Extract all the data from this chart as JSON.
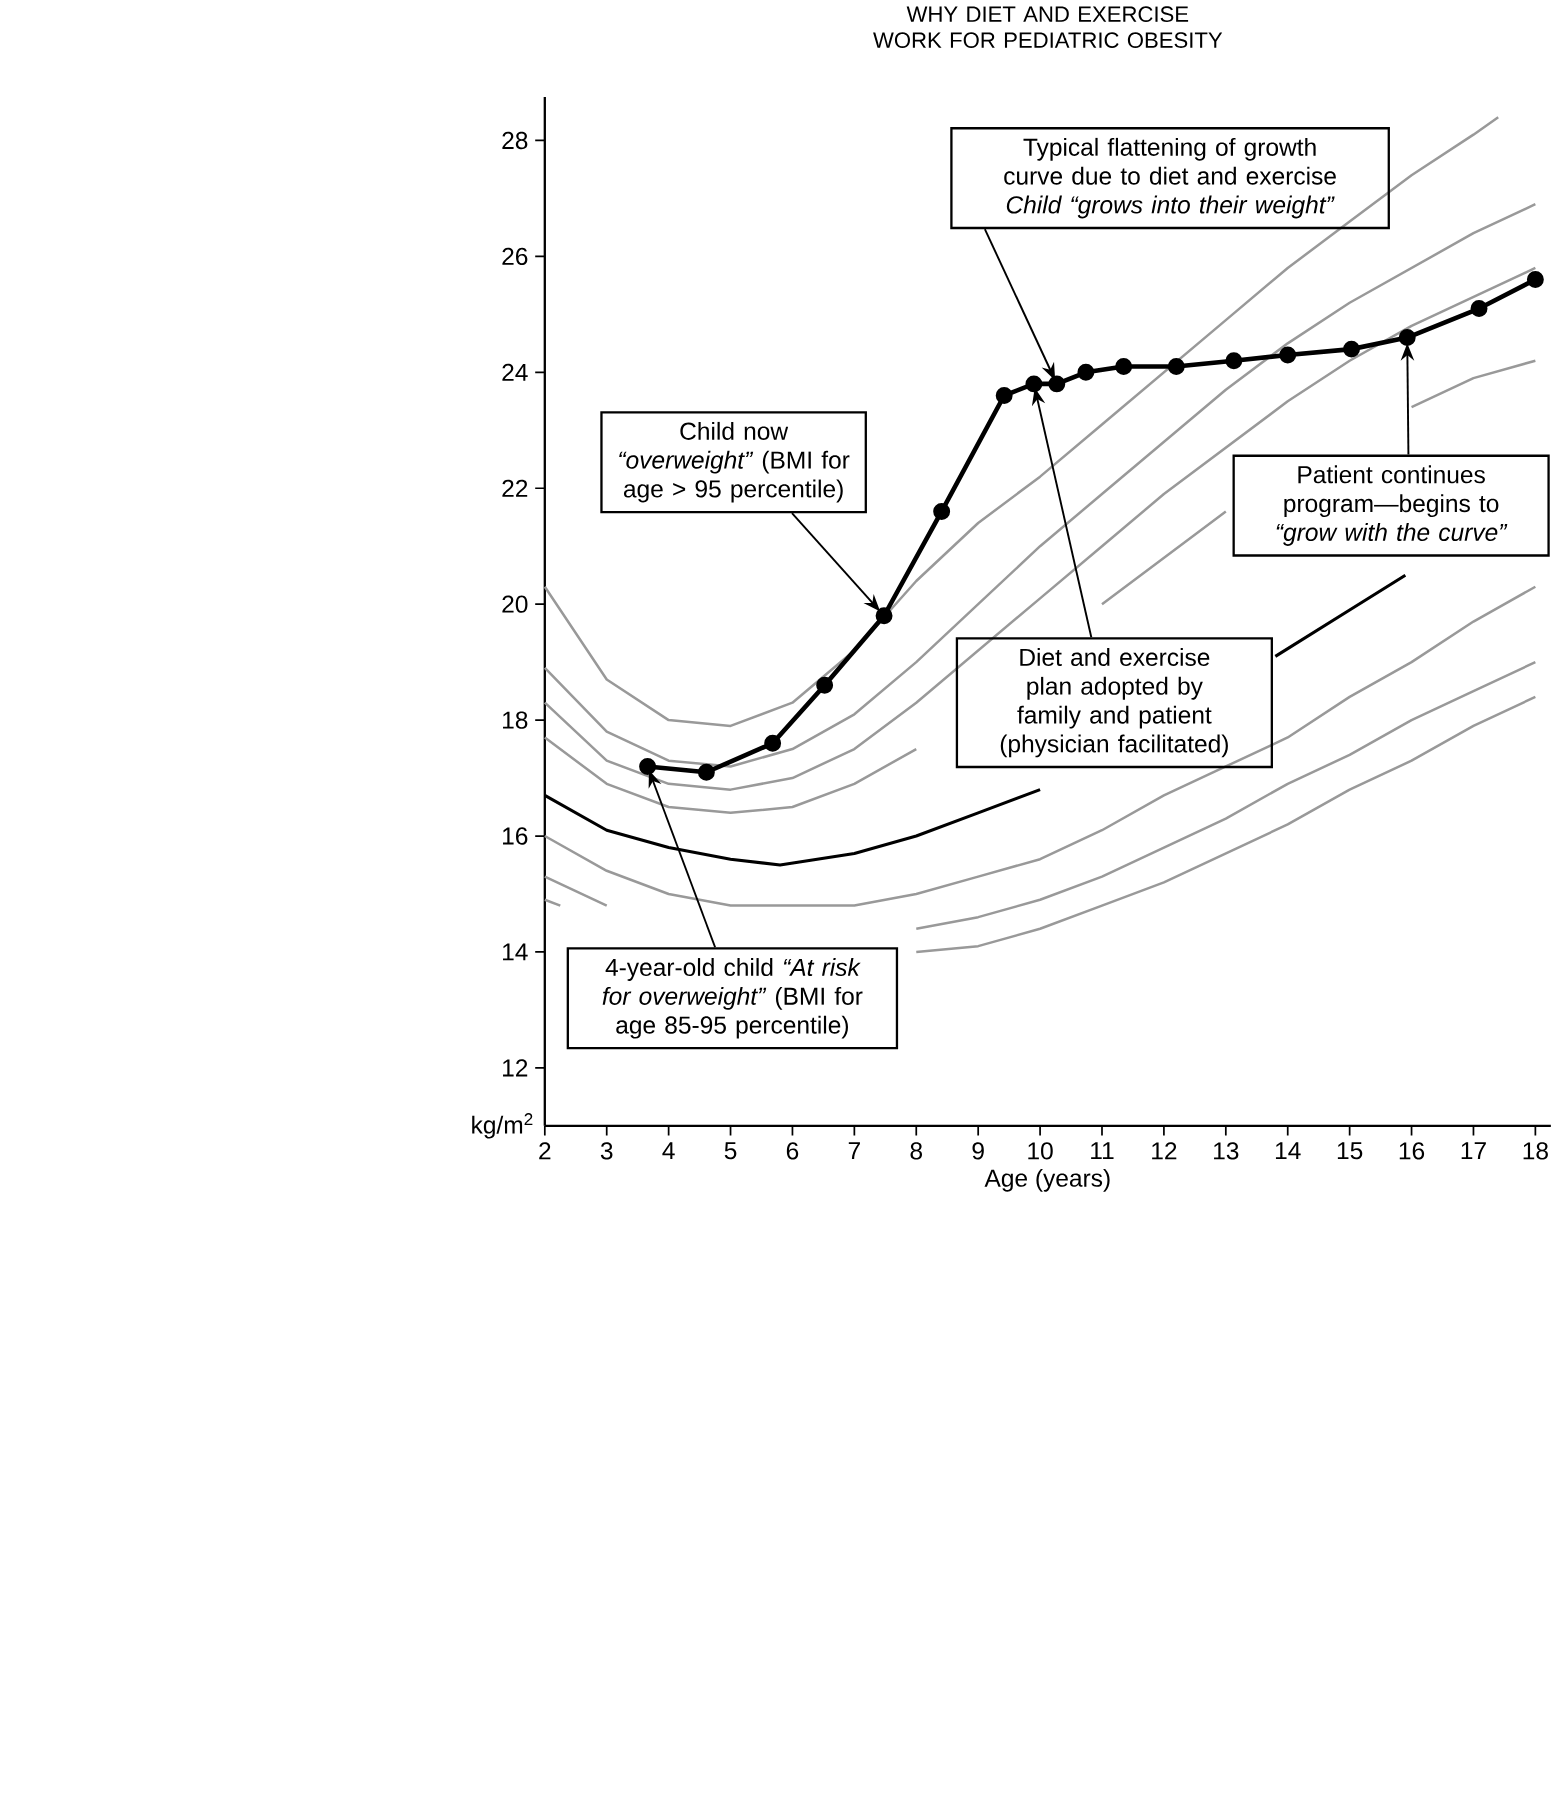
{
  "chart_data": {
    "type": "line",
    "title": "WHY DIET AND EXERCISE WORK FOR PEDIATRIC OBESITY",
    "xlabel": "Age (years)",
    "ylabel": "kg/m$^{2}$",
    "xlim": [
      2,
      18.25
    ],
    "ylim": [
      11,
      28.75
    ],
    "xticks": [
      2,
      3,
      4,
      5,
      6,
      7,
      8,
      9,
      10,
      11,
      12,
      13,
      14,
      15,
      16,
      17,
      18
    ],
    "yticks": [
      12,
      14,
      16,
      18,
      20,
      22,
      24,
      26,
      28
    ],
    "series": [
      {
        "color": "#999999",
        "x": [
          2,
          3,
          4,
          5,
          6,
          7,
          8,
          9,
          10,
          11,
          12,
          13,
          14,
          15,
          16,
          17,
          17.4
        ],
        "values": [
          20.3,
          18.7,
          18.0,
          17.9,
          18.3,
          19.2,
          20.4,
          21.4,
          22.2,
          23.1,
          24.0,
          24.9,
          25.8,
          26.6,
          27.4,
          28.1,
          28.4
        ]
      },
      {
        "color": "#999999",
        "x": [
          2,
          3,
          4,
          5,
          6,
          7,
          8,
          9,
          10,
          11,
          12,
          13,
          14,
          15,
          16,
          17,
          18
        ],
        "values": [
          18.9,
          17.8,
          17.3,
          17.2,
          17.5,
          18.1,
          19.0,
          20.0,
          21.0,
          21.9,
          22.8,
          23.7,
          24.5,
          25.2,
          25.8,
          26.4,
          26.9
        ]
      },
      {
        "color": "#999999",
        "x": [
          2,
          3,
          4,
          5,
          6,
          7,
          8,
          9,
          10,
          11,
          12,
          13,
          14,
          15,
          16,
          17,
          18
        ],
        "values": [
          18.3,
          17.3,
          16.9,
          16.8,
          17.0,
          17.5,
          18.3,
          null,
          20.1,
          21.0,
          21.9,
          22.7,
          23.5,
          24.2,
          24.8,
          25.3,
          25.8
        ]
      },
      {
        "color": "#999999",
        "x": [
          2,
          3,
          4,
          5,
          6,
          7,
          8,
          9,
          10,
          11,
          12,
          13,
          14,
          15,
          16,
          17,
          18
        ],
        "values": [
          17.7,
          16.9,
          16.5,
          16.4,
          16.5,
          16.9,
          17.5,
          null,
          null,
          20.0,
          20.8,
          21.6,
          null,
          null,
          23.4,
          23.9,
          24.2
        ]
      },
      {
        "color": "#000000",
        "x": [
          2,
          3,
          4,
          5,
          5.8,
          7,
          8,
          9,
          10,
          11,
          12,
          13,
          13.8,
          15,
          15.9
        ],
        "values": [
          16.7,
          16.1,
          15.8,
          15.6,
          15.5,
          15.7,
          16.0,
          16.4,
          16.8,
          null,
          null,
          null,
          19.1,
          19.9,
          20.5
        ]
      },
      {
        "color": "#999999",
        "x": [
          2,
          3,
          4,
          5,
          6,
          7,
          8,
          9,
          10,
          11,
          12,
          13,
          14,
          15,
          16,
          17,
          18
        ],
        "values": [
          16.0,
          15.4,
          15.0,
          14.8,
          14.8,
          14.8,
          15.0,
          15.3,
          15.6,
          16.1,
          16.7,
          17.2,
          17.7,
          18.4,
          19.0,
          19.7,
          20.3
        ]
      },
      {
        "color": "#999999",
        "x": [
          2,
          3,
          4,
          5,
          6,
          7,
          8,
          9,
          10,
          11,
          12,
          13,
          14,
          15,
          16,
          17,
          18
        ],
        "values": [
          15.3,
          14.8,
          null,
          null,
          null,
          null,
          14.4,
          14.6,
          14.9,
          15.3,
          15.8,
          16.3,
          16.9,
          17.4,
          18.0,
          18.5,
          19.0
        ]
      },
      {
        "color": "#999999",
        "x": [
          2,
          2.25,
          3,
          4,
          5,
          6,
          7,
          8,
          9,
          10,
          11,
          12,
          13,
          14,
          15,
          16,
          17,
          18
        ],
        "values": [
          14.9,
          14.8,
          null,
          null,
          null,
          null,
          null,
          14.0,
          14.1,
          14.4,
          14.8,
          15.2,
          15.7,
          16.2,
          16.8,
          17.3,
          17.9,
          18.4
        ]
      },
      {
        "color": "#000000",
        "marker": "circle",
        "x": [
          3.66,
          4.61,
          5.68,
          6.52,
          7.48,
          8.41,
          9.42,
          9.9,
          10.27,
          10.74,
          11.35,
          12.2,
          13.13,
          14.0,
          15.03,
          15.93,
          17.09,
          18.0
        ],
        "values": [
          17.2,
          17.1,
          17.6,
          18.6,
          19.8,
          21.6,
          23.6,
          23.8,
          23.8,
          24.0,
          24.1,
          24.1,
          24.2,
          24.3,
          24.4,
          24.6,
          25.1,
          25.6
        ]
      }
    ],
    "annotations": [
      {
        "text": "4-year-old child *“At risk for overweight”* (BMI for age 85-95 percentile)",
        "x": 3.66,
        "y": 17.2
      },
      {
        "text": "Child now *“overweight”* (BMI for age > 95 percentile)",
        "x": 7.48,
        "y": 19.8
      },
      {
        "text": "Diet and exercise plan adopted by family and patient (physician facilitated)",
        "x": 9.9,
        "y": 23.8
      },
      {
        "text": "Typical flattening of growth curve due to diet and exercise *Child “grows into their weight”*",
        "x": 10.27,
        "y": 23.8
      },
      {
        "text": "Patient continues program—begins to *“grow with the curve”*",
        "x": 15.93,
        "y": 24.6
      }
    ]
  }
}
